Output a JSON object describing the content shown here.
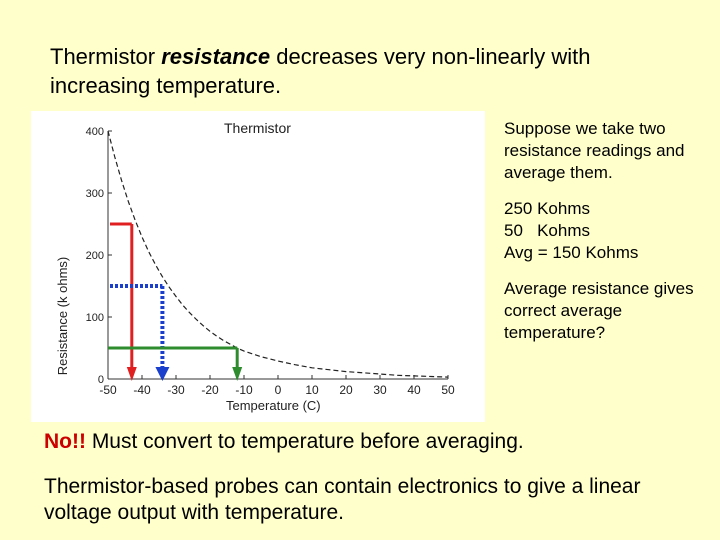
{
  "title": {
    "prefix": "Thermistor ",
    "emphasis": "resistance",
    "suffix": " decreases very non-linearly with increasing temperature."
  },
  "side_text": {
    "para1": "Suppose we take two resistance readings and average them.",
    "reading1": "250 Kohms",
    "reading2": "50   Kohms",
    "average": "Avg = 150 Kohms",
    "para3": "Average resistance gives correct average temperature?"
  },
  "conclusion": {
    "no": "No!!",
    "rest": " Must convert to temperature before averaging."
  },
  "footer": "Thermistor-based probes can contain electronics to give a linear voltage output with temperature.",
  "colors": {
    "background": "#ffffcc",
    "red": "#e02020",
    "blue": "#1a3fcc",
    "green": "#2e8b2e"
  },
  "chart_data": {
    "type": "line",
    "title": "Thermistor",
    "xlabel": "Temperature (C)",
    "ylabel": "Resistance (k ohms)",
    "xlim": [
      -50,
      50
    ],
    "ylim": [
      0,
      400
    ],
    "x_ticks": [
      -50,
      -40,
      -30,
      -20,
      -10,
      0,
      10,
      20,
      30,
      40,
      50
    ],
    "y_ticks": [
      0,
      100,
      200,
      300,
      400
    ],
    "series": [
      {
        "x": [
          -50,
          -48,
          -46,
          -44,
          -42,
          -40,
          -38,
          -36,
          -34,
          -32,
          -30,
          -28,
          -26,
          -24,
          -22,
          -20,
          -18,
          -16,
          -14,
          -12,
          -10,
          -5,
          0,
          5,
          10,
          15,
          20,
          25,
          30,
          35,
          40,
          45,
          50
        ],
        "y": [
          400,
          358,
          320,
          286,
          256,
          229,
          205,
          184,
          165,
          148,
          133,
          119,
          107,
          96,
          86,
          77,
          69,
          62,
          56,
          50,
          45,
          36,
          29,
          23,
          18,
          15,
          12,
          10,
          8,
          6,
          5,
          4,
          3
        ]
      }
    ],
    "annotations": [
      {
        "name": "reading-250",
        "color": "red",
        "resistance": 250,
        "temperature": -43
      },
      {
        "name": "average-150",
        "color": "blue",
        "resistance": 150,
        "temperature": -34
      },
      {
        "name": "reading-50",
        "color": "green",
        "resistance": 50,
        "temperature": -12
      }
    ]
  }
}
